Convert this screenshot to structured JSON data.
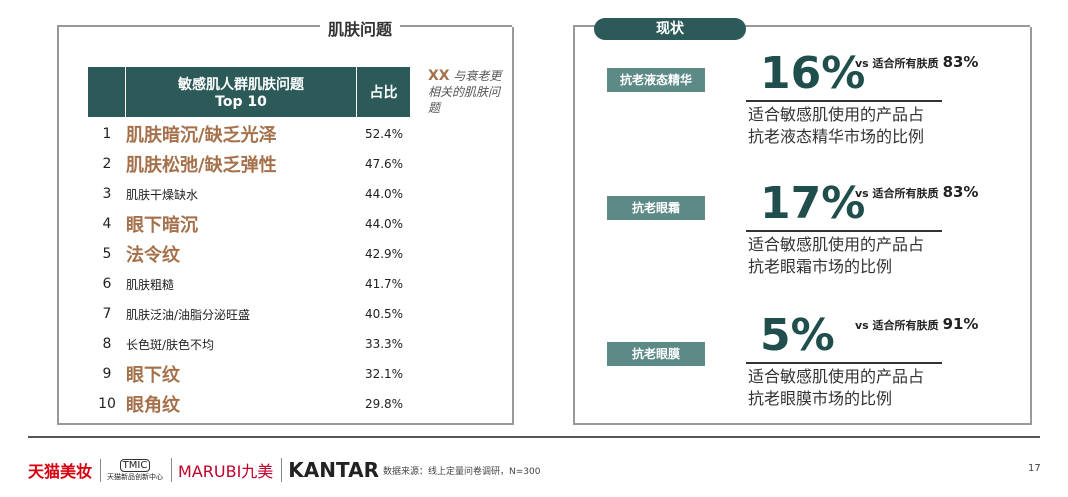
{
  "left_panel": {
    "title": "肌肤问题",
    "table": {
      "header": {
        "issue": "敏感肌人群肌肤问题",
        "issue_sub": "Top 10",
        "share": "占比"
      },
      "rows": [
        {
          "rank": 1,
          "issue": "肌肤暗沉/缺乏光泽",
          "share": "52.4%",
          "highlight": true
        },
        {
          "rank": 2,
          "issue": "肌肤松弛/缺乏弹性",
          "share": "47.6%",
          "highlight": true
        },
        {
          "rank": 3,
          "issue": "肌肤干燥缺水",
          "share": "44.0%",
          "highlight": false
        },
        {
          "rank": 4,
          "issue": "眼下暗沉",
          "share": "44.0%",
          "highlight": true
        },
        {
          "rank": 5,
          "issue": "法令纹",
          "share": "42.9%",
          "highlight": true
        },
        {
          "rank": 6,
          "issue": "肌肤粗糙",
          "share": "41.7%",
          "highlight": false
        },
        {
          "rank": 7,
          "issue": "肌肤泛油/油脂分泌旺盛",
          "share": "40.5%",
          "highlight": false
        },
        {
          "rank": 8,
          "issue": "长色斑/肤色不均",
          "share": "33.3%",
          "highlight": false
        },
        {
          "rank": 9,
          "issue": "眼下纹",
          "share": "32.1%",
          "highlight": true
        },
        {
          "rank": 10,
          "issue": "眼角纹",
          "share": "29.8%",
          "highlight": true
        }
      ]
    },
    "legend": {
      "marker": "XX",
      "text": "与衰老更相关的肌肤问题"
    }
  },
  "right_panel": {
    "tag": "现状",
    "items": [
      {
        "label": "抗老液态精华",
        "value": "16%",
        "vs_label": "vs 适合所有肤质",
        "vs_value": "83%",
        "description": [
          "适合敏感肌使用的产品占",
          "抗老液态精华市场的比例"
        ]
      },
      {
        "label": "抗老眼霜",
        "value": "17%",
        "vs_label": "vs 适合所有肤质",
        "vs_value": "83%",
        "description": [
          "适合敏感肌使用的产品占",
          "抗老眼霜市场的比例"
        ]
      },
      {
        "label": "抗老眼膜",
        "value": "5%",
        "vs_label": "vs 适合所有肤质",
        "vs_value": "91%",
        "description": [
          "适合敏感肌使用的产品占",
          "抗老眼膜市场的比例"
        ]
      }
    ]
  },
  "footer": {
    "logos": [
      "天猫美妆",
      "TMIC",
      "天猫新品创新中心",
      "MARUBI九美",
      "KANTAR"
    ],
    "source": "数据来源：线上定量问卷调研，N=300",
    "page": "17"
  }
}
